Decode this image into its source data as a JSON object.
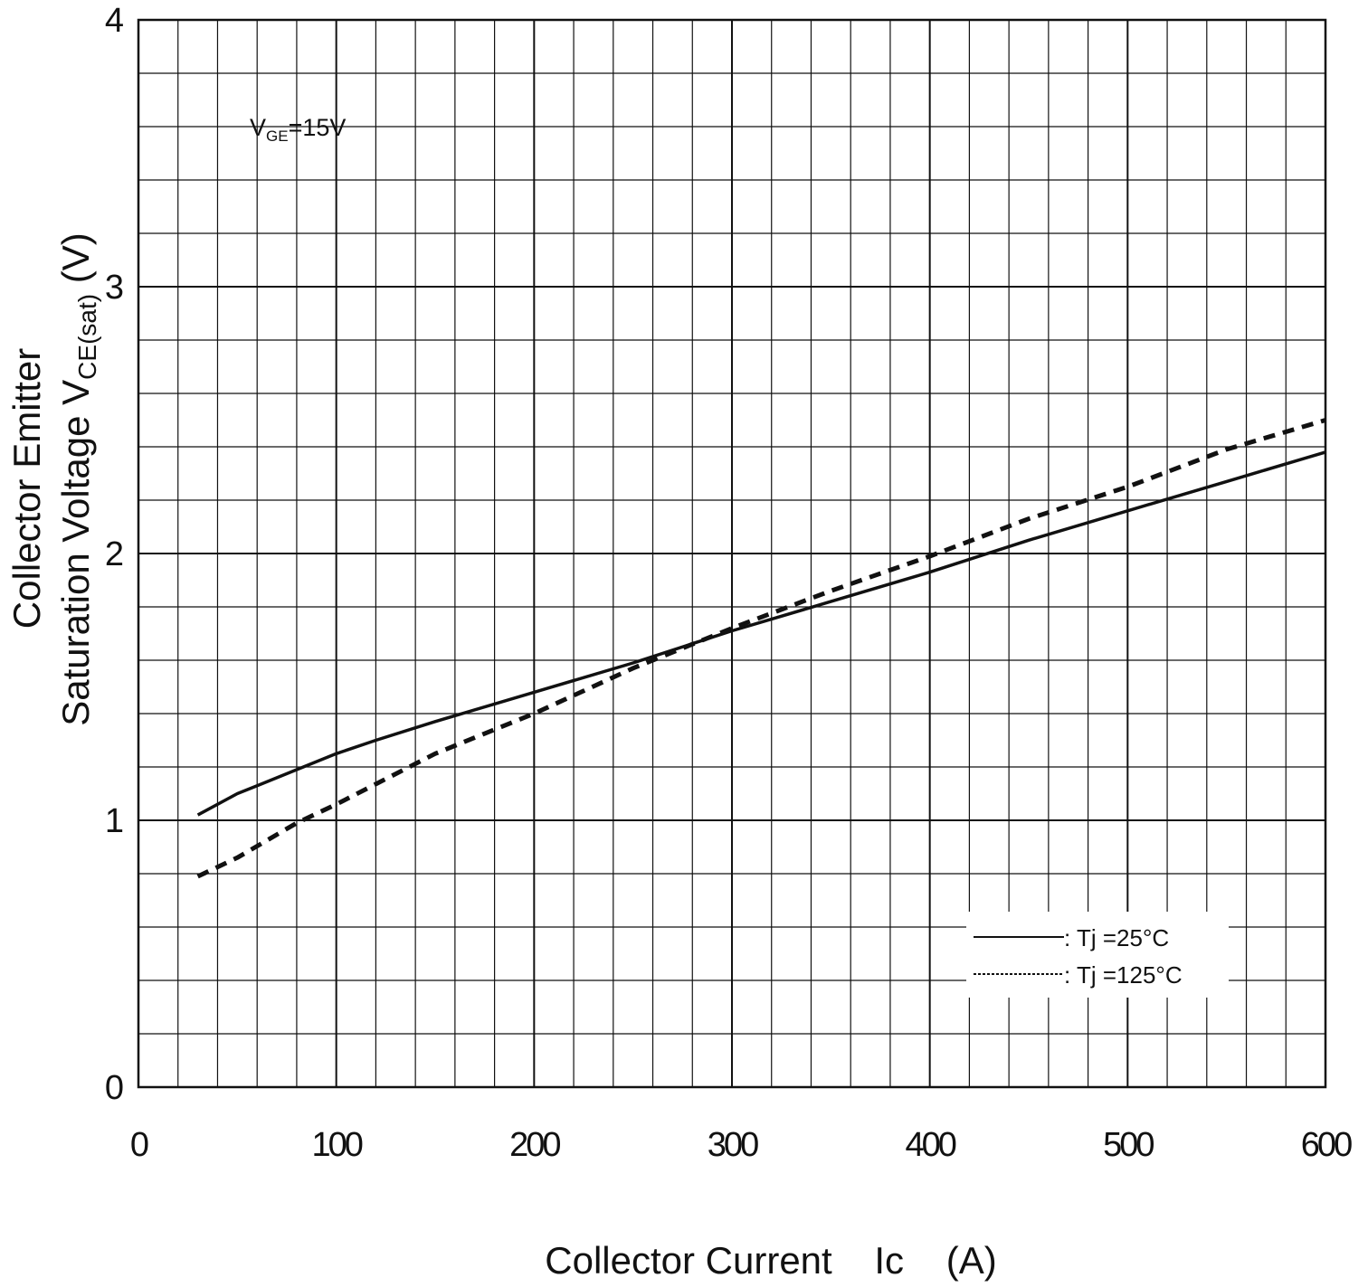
{
  "chart_data": {
    "type": "line",
    "title": "",
    "xlabel": "Collector Current    Ic    (A)",
    "ylabel_line1": "Collector Emitter",
    "ylabel_line2_main": "Saturation Voltage    V",
    "ylabel_line2_sub": "CE(sat)",
    "ylabel_unit": "(V)",
    "annotation": {
      "main": "V",
      "sub": "GE",
      "rest": "=15V"
    },
    "xlim": [
      0,
      600
    ],
    "ylim": [
      0,
      4
    ],
    "x_ticks": [
      0,
      100,
      200,
      300,
      400,
      500,
      600
    ],
    "x_tick_labels": [
      "0",
      "100",
      "200",
      "300",
      "400",
      "500",
      "600"
    ],
    "y_ticks": [
      0,
      1,
      2,
      3,
      4
    ],
    "y_tick_labels": [
      "0",
      "1",
      "2",
      "3",
      "4"
    ],
    "grid": true,
    "minor_grid_x_step": 20,
    "minor_grid_y_step": 0.2,
    "legend_position": "bottom-right",
    "series": [
      {
        "name": ": Tj =25°C",
        "style": "solid",
        "color": "#111111",
        "points": [
          [
            30,
            1.02
          ],
          [
            50,
            1.1
          ],
          [
            60,
            1.13
          ],
          [
            80,
            1.19
          ],
          [
            100,
            1.25
          ],
          [
            120,
            1.3
          ],
          [
            150,
            1.37
          ],
          [
            200,
            1.48
          ],
          [
            250,
            1.59
          ],
          [
            300,
            1.71
          ],
          [
            350,
            1.82
          ],
          [
            400,
            1.93
          ],
          [
            450,
            2.05
          ],
          [
            500,
            2.16
          ],
          [
            550,
            2.27
          ],
          [
            600,
            2.38
          ]
        ]
      },
      {
        "name": ": Tj =125°C",
        "style": "dashed",
        "color": "#111111",
        "points": [
          [
            30,
            0.79
          ],
          [
            50,
            0.86
          ],
          [
            80,
            0.99
          ],
          [
            100,
            1.06
          ],
          [
            150,
            1.25
          ],
          [
            200,
            1.4
          ],
          [
            250,
            1.57
          ],
          [
            300,
            1.72
          ],
          [
            350,
            1.86
          ],
          [
            400,
            1.99
          ],
          [
            450,
            2.13
          ],
          [
            500,
            2.25
          ],
          [
            550,
            2.39
          ],
          [
            600,
            2.5
          ]
        ]
      }
    ]
  }
}
